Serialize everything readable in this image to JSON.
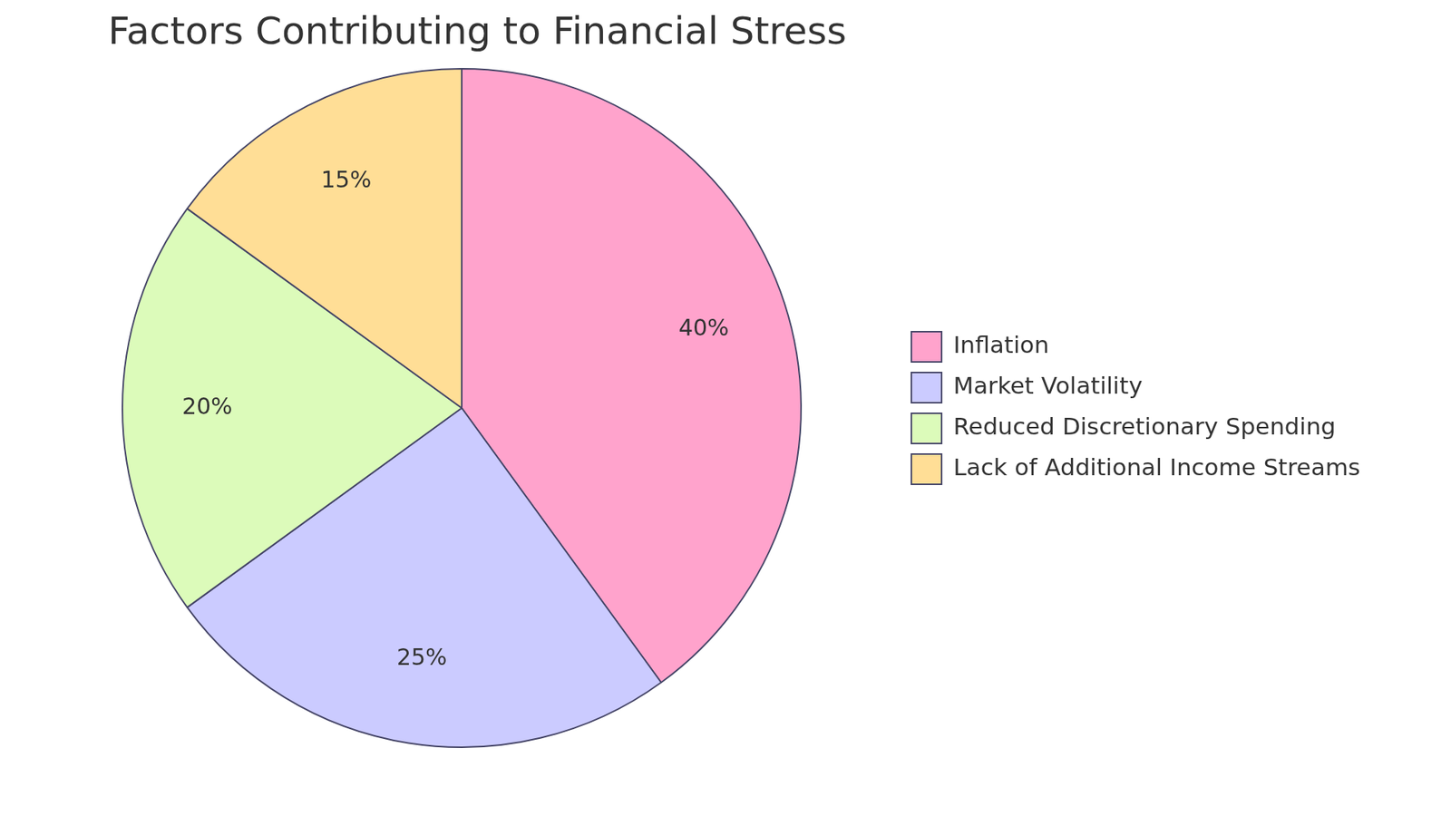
{
  "chart_data": {
    "type": "pie",
    "title": "Factors Contributing to Financial Stress",
    "categories": [
      "Inflation",
      "Market Volatility",
      "Reduced Discretionary Spending",
      "Lack of Additional Income Streams"
    ],
    "values": [
      40,
      25,
      20,
      15
    ],
    "value_labels": [
      "40%",
      "25%",
      "20%",
      "15%"
    ],
    "colors": [
      "#ffa3cc",
      "#cbcbff",
      "#dcfbba",
      "#ffde96"
    ],
    "data_labels": true,
    "legend": "right"
  }
}
